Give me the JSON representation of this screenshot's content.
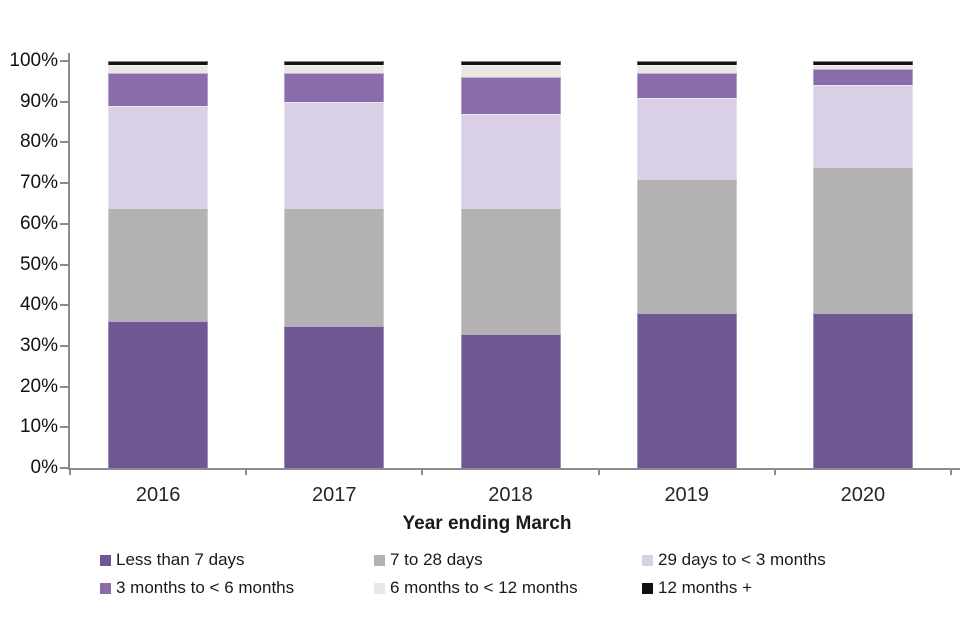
{
  "chart_data": {
    "type": "bar",
    "stacked": true,
    "percent": true,
    "title": "",
    "xlabel": "Year ending March",
    "ylabel": "",
    "ylim": [
      0,
      100
    ],
    "grid": false,
    "legend_position": "bottom",
    "y_tick_labels": [
      "0%",
      "10%",
      "20%",
      "30%",
      "40%",
      "50%",
      "60%",
      "70%",
      "80%",
      "90%",
      "100%"
    ],
    "categories": [
      "2016",
      "2017",
      "2018",
      "2019",
      "2020"
    ],
    "series": [
      {
        "name": "Less than 7 days",
        "color": "#6f5794",
        "values": [
          36,
          35,
          33,
          38,
          38
        ]
      },
      {
        "name": "7 to 28 days",
        "color": "#b3b1b1",
        "values": [
          28,
          29,
          31,
          33,
          36
        ]
      },
      {
        "name": "29 days to < 3 months",
        "color": "#d9d0e6",
        "values": [
          25,
          26,
          23,
          20,
          20
        ]
      },
      {
        "name": "3 months to < 6 months",
        "color": "#8a6cad",
        "values": [
          8,
          7,
          9,
          6,
          4
        ]
      },
      {
        "name": "6 months to < 12 months",
        "color": "#e9e7e4",
        "values": [
          2,
          2,
          3,
          2,
          1
        ]
      },
      {
        "name": "12 months +",
        "color": "#111111",
        "values": [
          1,
          1,
          1,
          1,
          1
        ]
      }
    ]
  },
  "colors": {
    "axis": "#8c8c8c",
    "tick_label": "#111111",
    "category_label": "#262626",
    "background": "#ffffff"
  }
}
